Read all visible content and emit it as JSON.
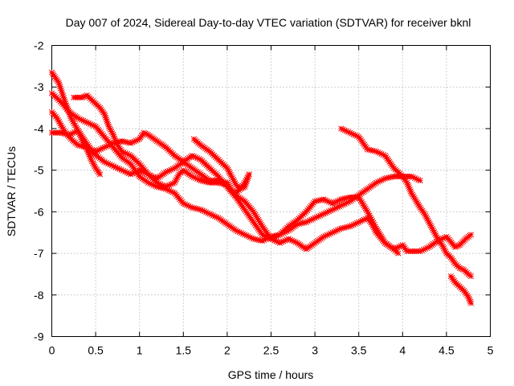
{
  "chart_data": {
    "type": "scatter",
    "title": "Day 007 of 2024, Sidereal Day-to-day VTEC variation (SDTVAR) for receiver bknl",
    "xlabel": "GPS time / hours",
    "ylabel": "SDTVAR / TECUs",
    "xlim": [
      0,
      5
    ],
    "ylim": [
      -9,
      -2
    ],
    "xticks": [
      0,
      0.5,
      1,
      1.5,
      2,
      2.5,
      3,
      3.5,
      4,
      4.5,
      5
    ],
    "xtick_labels": [
      "0",
      "0.5",
      "1",
      "1.5",
      "2",
      "2.5",
      "3",
      "3.5",
      "4",
      "4.5",
      "5"
    ],
    "yticks": [
      -9,
      -8,
      -7,
      -6,
      -5,
      -4,
      -3,
      -2
    ],
    "ytick_labels": [
      "-9",
      "-8",
      "-7",
      "-6",
      "-5",
      "-4",
      "-3",
      "-2"
    ],
    "grid": true,
    "marker": "plus-cross",
    "color": "#ff0000",
    "series": [
      {
        "name": "track-1",
        "points": [
          [
            0.0,
            -2.65
          ],
          [
            0.08,
            -2.9
          ],
          [
            0.15,
            -3.35
          ],
          [
            0.22,
            -3.75
          ],
          [
            0.3,
            -4.05
          ],
          [
            0.38,
            -4.3
          ],
          [
            0.48,
            -4.6
          ],
          [
            0.6,
            -4.8
          ],
          [
            0.75,
            -4.95
          ],
          [
            0.9,
            -5.1
          ],
          [
            1.0,
            -5.0
          ],
          [
            1.1,
            -5.1
          ],
          [
            1.2,
            -5.2
          ],
          [
            1.3,
            -5.05
          ],
          [
            1.4,
            -4.95
          ],
          [
            1.5,
            -4.8
          ],
          [
            1.6,
            -4.65
          ],
          [
            1.7,
            -4.75
          ],
          [
            1.8,
            -4.95
          ],
          [
            1.9,
            -5.15
          ],
          [
            2.0,
            -5.4
          ],
          [
            2.1,
            -5.65
          ],
          [
            2.2,
            -5.95
          ],
          [
            2.3,
            -6.25
          ],
          [
            2.4,
            -6.55
          ],
          [
            2.5,
            -6.65
          ],
          [
            2.6,
            -6.55
          ],
          [
            2.7,
            -6.35
          ],
          [
            2.8,
            -6.2
          ],
          [
            2.9,
            -6.0
          ],
          [
            3.0,
            -5.75
          ],
          [
            3.1,
            -5.7
          ],
          [
            3.2,
            -5.8
          ],
          [
            3.3,
            -5.7
          ],
          [
            3.4,
            -5.65
          ],
          [
            3.5,
            -5.65
          ],
          [
            3.6,
            -6.0
          ],
          [
            3.7,
            -6.4
          ],
          [
            3.8,
            -6.75
          ],
          [
            3.9,
            -6.9
          ],
          [
            4.0,
            -6.8
          ],
          [
            4.05,
            -6.95
          ],
          [
            4.2,
            -6.95
          ],
          [
            4.3,
            -6.85
          ],
          [
            4.4,
            -6.7
          ],
          [
            4.5,
            -6.6
          ],
          [
            4.6,
            -6.85
          ],
          [
            4.65,
            -6.8
          ],
          [
            4.72,
            -6.65
          ],
          [
            4.78,
            -6.55
          ]
        ]
      },
      {
        "name": "track-2",
        "points": [
          [
            0.0,
            -3.15
          ],
          [
            0.1,
            -3.35
          ],
          [
            0.2,
            -3.6
          ],
          [
            0.3,
            -3.75
          ],
          [
            0.4,
            -3.85
          ],
          [
            0.5,
            -3.95
          ],
          [
            0.6,
            -4.2
          ],
          [
            0.7,
            -4.45
          ],
          [
            0.8,
            -4.7
          ],
          [
            0.9,
            -4.85
          ],
          [
            1.0,
            -5.15
          ],
          [
            1.1,
            -5.3
          ],
          [
            1.2,
            -5.4
          ],
          [
            1.3,
            -5.45
          ],
          [
            1.4,
            -5.55
          ],
          [
            1.5,
            -5.8
          ],
          [
            1.6,
            -5.9
          ],
          [
            1.7,
            -5.95
          ],
          [
            1.8,
            -6.05
          ],
          [
            1.9,
            -6.15
          ],
          [
            2.0,
            -6.3
          ],
          [
            2.1,
            -6.45
          ],
          [
            2.2,
            -6.55
          ],
          [
            2.3,
            -6.65
          ],
          [
            2.4,
            -6.7
          ],
          [
            2.5,
            -6.6
          ],
          [
            2.6,
            -6.55
          ],
          [
            2.7,
            -6.45
          ],
          [
            2.8,
            -6.3
          ],
          [
            2.9,
            -6.25
          ],
          [
            3.0,
            -6.15
          ],
          [
            3.1,
            -6.05
          ],
          [
            3.2,
            -5.95
          ],
          [
            3.3,
            -5.85
          ],
          [
            3.4,
            -5.75
          ],
          [
            3.5,
            -5.6
          ],
          [
            3.6,
            -5.45
          ],
          [
            3.7,
            -5.3
          ],
          [
            3.8,
            -5.2
          ],
          [
            3.9,
            -5.15
          ],
          [
            4.0,
            -5.15
          ],
          [
            4.1,
            -5.15
          ],
          [
            4.2,
            -5.25
          ]
        ]
      },
      {
        "name": "track-3",
        "points": [
          [
            0.0,
            -3.6
          ],
          [
            0.06,
            -3.75
          ],
          [
            0.14,
            -4.05
          ],
          [
            0.22,
            -4.25
          ],
          [
            0.3,
            -4.4
          ],
          [
            0.4,
            -4.45
          ],
          [
            0.5,
            -4.55
          ],
          [
            0.6,
            -4.45
          ],
          [
            0.7,
            -4.35
          ],
          [
            0.8,
            -4.3
          ],
          [
            0.9,
            -4.35
          ],
          [
            1.0,
            -4.25
          ],
          [
            1.05,
            -4.1
          ],
          [
            1.1,
            -4.15
          ],
          [
            1.2,
            -4.3
          ],
          [
            1.3,
            -4.45
          ],
          [
            1.4,
            -4.65
          ],
          [
            1.5,
            -4.8
          ],
          [
            1.6,
            -4.95
          ],
          [
            1.7,
            -5.1
          ],
          [
            1.8,
            -5.25
          ],
          [
            1.9,
            -5.25
          ],
          [
            2.0,
            -5.3
          ],
          [
            2.05,
            -5.5
          ],
          [
            2.1,
            -5.55
          ],
          [
            2.15,
            -5.45
          ],
          [
            2.2,
            -5.3
          ],
          [
            2.25,
            -5.1
          ]
        ]
      },
      {
        "name": "track-4",
        "points": [
          [
            0.0,
            -4.1
          ],
          [
            0.1,
            -4.1
          ],
          [
            0.2,
            -4.15
          ],
          [
            0.3,
            -4.05
          ],
          [
            0.35,
            -4.3
          ],
          [
            0.4,
            -4.5
          ],
          [
            0.45,
            -4.75
          ],
          [
            0.5,
            -4.95
          ],
          [
            0.55,
            -5.1
          ]
        ]
      },
      {
        "name": "track-5",
        "points": [
          [
            0.25,
            -3.25
          ],
          [
            0.35,
            -3.25
          ],
          [
            0.4,
            -3.2
          ],
          [
            0.45,
            -3.3
          ],
          [
            0.5,
            -3.4
          ],
          [
            0.55,
            -3.5
          ],
          [
            0.6,
            -3.65
          ],
          [
            0.65,
            -3.95
          ],
          [
            0.7,
            -4.15
          ],
          [
            0.75,
            -4.4
          ],
          [
            0.8,
            -4.55
          ],
          [
            0.9,
            -4.65
          ],
          [
            1.0,
            -4.85
          ],
          [
            1.1,
            -5.1
          ],
          [
            1.2,
            -5.3
          ],
          [
            1.3,
            -5.4
          ],
          [
            1.4,
            -5.3
          ],
          [
            1.45,
            -5.1
          ],
          [
            1.5,
            -5.0
          ],
          [
            1.6,
            -5.15
          ],
          [
            1.7,
            -5.25
          ],
          [
            1.8,
            -5.3
          ],
          [
            1.9,
            -5.3
          ],
          [
            2.0,
            -5.35
          ],
          [
            2.1,
            -5.6
          ],
          [
            2.2,
            -5.75
          ],
          [
            2.3,
            -6.0
          ],
          [
            2.4,
            -6.35
          ],
          [
            2.5,
            -6.65
          ],
          [
            2.6,
            -6.75
          ],
          [
            2.7,
            -6.65
          ],
          [
            2.8,
            -6.75
          ],
          [
            2.9,
            -6.9
          ],
          [
            3.0,
            -6.75
          ],
          [
            3.1,
            -6.6
          ],
          [
            3.2,
            -6.5
          ],
          [
            3.3,
            -6.4
          ],
          [
            3.4,
            -6.35
          ],
          [
            3.5,
            -6.25
          ],
          [
            3.6,
            -6.15
          ],
          [
            3.65,
            -6.3
          ],
          [
            3.7,
            -6.5
          ],
          [
            3.8,
            -6.75
          ],
          [
            3.9,
            -6.9
          ],
          [
            3.95,
            -7.0
          ]
        ]
      },
      {
        "name": "track-6",
        "points": [
          [
            1.62,
            -4.25
          ],
          [
            1.7,
            -4.4
          ],
          [
            1.8,
            -4.55
          ],
          [
            1.9,
            -4.75
          ],
          [
            2.0,
            -4.95
          ],
          [
            2.05,
            -5.15
          ],
          [
            2.1,
            -5.35
          ],
          [
            2.15,
            -5.45
          ],
          [
            2.2,
            -5.4
          ],
          [
            2.25,
            -5.1
          ]
        ]
      },
      {
        "name": "track-7",
        "points": [
          [
            3.3,
            -4.0
          ],
          [
            3.4,
            -4.1
          ],
          [
            3.5,
            -4.2
          ],
          [
            3.55,
            -4.35
          ],
          [
            3.6,
            -4.5
          ],
          [
            3.7,
            -4.55
          ],
          [
            3.8,
            -4.65
          ],
          [
            3.85,
            -4.8
          ],
          [
            3.9,
            -4.95
          ],
          [
            3.95,
            -5.05
          ],
          [
            4.0,
            -5.15
          ],
          [
            4.05,
            -5.3
          ],
          [
            4.1,
            -5.55
          ],
          [
            4.2,
            -5.9
          ],
          [
            4.25,
            -6.05
          ],
          [
            4.3,
            -6.25
          ],
          [
            4.35,
            -6.45
          ],
          [
            4.4,
            -6.65
          ],
          [
            4.45,
            -6.8
          ],
          [
            4.5,
            -7.0
          ],
          [
            4.55,
            -7.1
          ],
          [
            4.6,
            -7.25
          ],
          [
            4.65,
            -7.35
          ],
          [
            4.7,
            -7.4
          ],
          [
            4.75,
            -7.5
          ],
          [
            4.78,
            -7.55
          ]
        ]
      },
      {
        "name": "track-8",
        "points": [
          [
            4.55,
            -7.55
          ],
          [
            4.6,
            -7.7
          ],
          [
            4.65,
            -7.8
          ],
          [
            4.7,
            -7.9
          ],
          [
            4.75,
            -8.05
          ],
          [
            4.78,
            -8.2
          ]
        ]
      }
    ]
  }
}
